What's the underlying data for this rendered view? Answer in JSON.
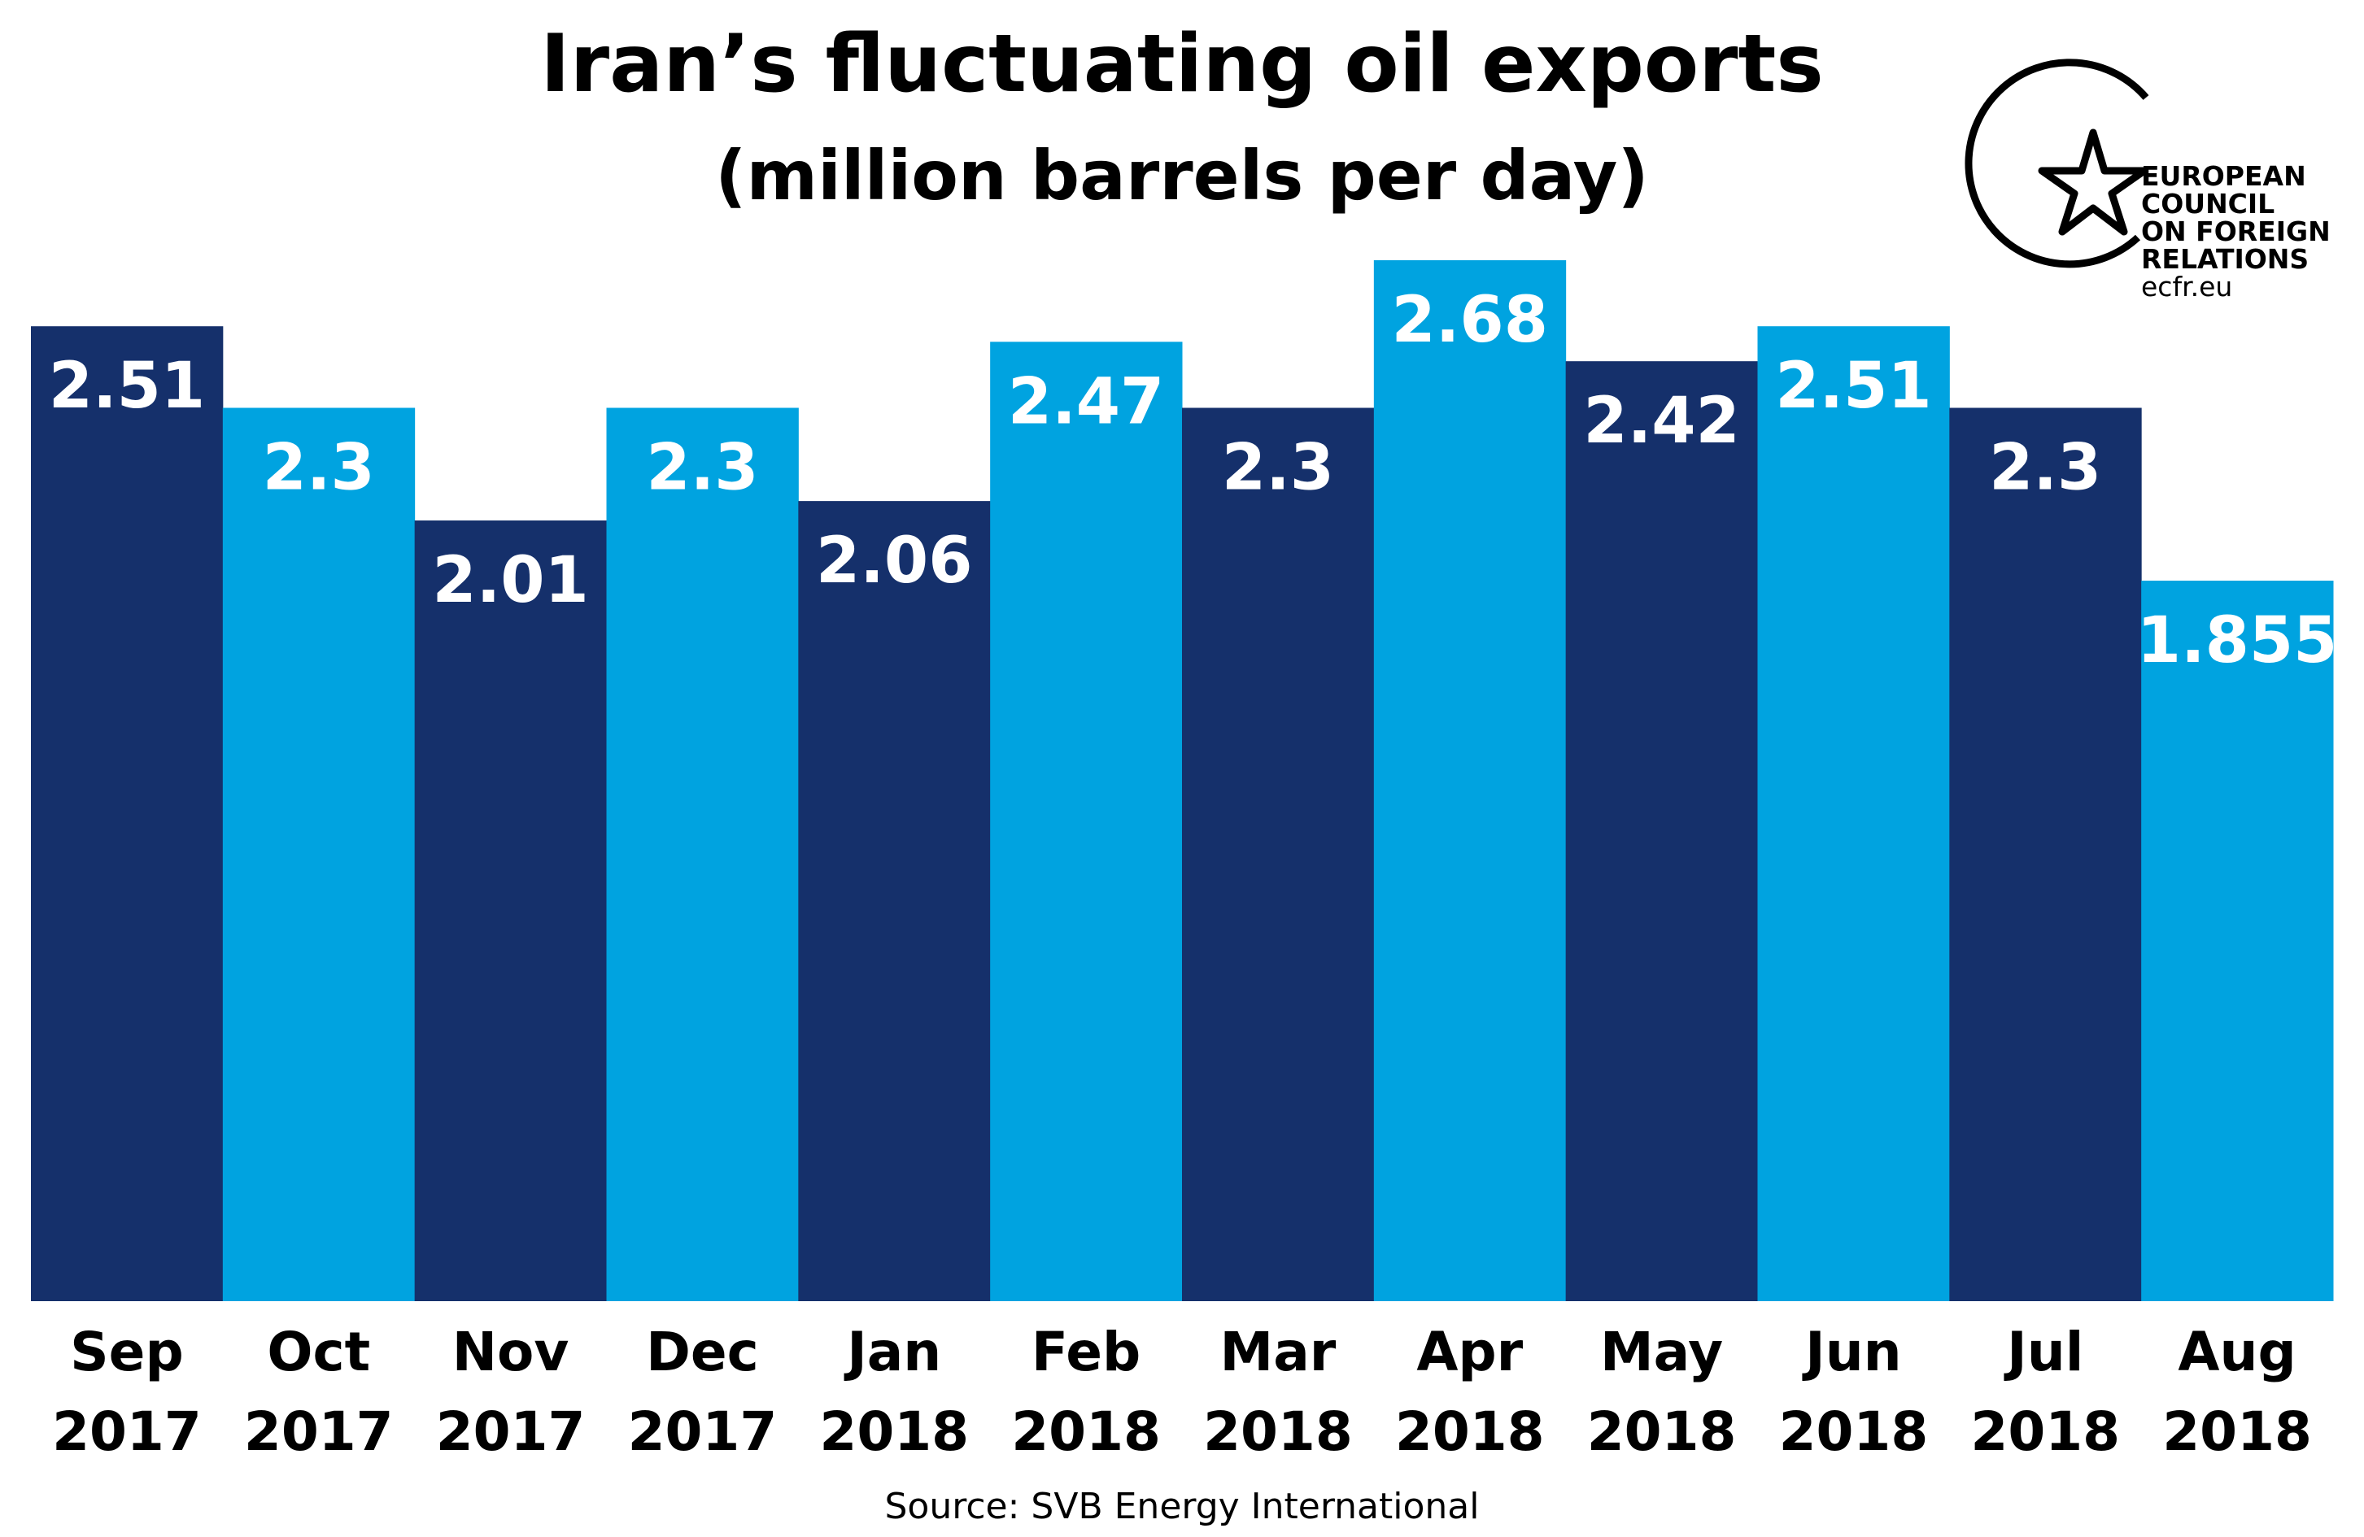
{
  "chart_data": {
    "type": "bar",
    "title": "Iran’s fluctuating oil exports",
    "subtitle": "(million barrels per day)",
    "categories": [
      [
        "Sep",
        "2017"
      ],
      [
        "Oct",
        "2017"
      ],
      [
        "Nov",
        "2017"
      ],
      [
        "Dec",
        "2017"
      ],
      [
        "Jan",
        "2018"
      ],
      [
        "Feb",
        "2018"
      ],
      [
        "Mar",
        "2018"
      ],
      [
        "Apr",
        "2018"
      ],
      [
        "May",
        "2018"
      ],
      [
        "Jun",
        "2018"
      ],
      [
        "Jul",
        "2018"
      ],
      [
        "Aug",
        "2018"
      ]
    ],
    "values": [
      2.51,
      2.3,
      2.01,
      2.3,
      2.06,
      2.47,
      2.3,
      2.68,
      2.42,
      2.51,
      2.3,
      1.855
    ],
    "value_labels": [
      "2.51",
      "2.3",
      "2.01",
      "2.3",
      "2.06",
      "2.47",
      "2.3",
      "2.68",
      "2.42",
      "2.51",
      "2.3",
      "1.855"
    ],
    "colors": [
      "#15306b",
      "#00a3e0",
      "#15306b",
      "#00a3e0",
      "#15306b",
      "#00a3e0",
      "#15306b",
      "#00a3e0",
      "#15306b",
      "#00a3e0",
      "#15306b",
      "#00a3e0"
    ],
    "ylim": [
      0,
      2.68
    ],
    "grid": false,
    "xlabel": "",
    "ylabel": ""
  },
  "source": "Source: SVB Energy International",
  "logo": {
    "lines": [
      "EUROPEAN",
      "COUNCIL",
      "ON FOREIGN",
      "RELATIONS"
    ],
    "url": "ecfr.eu",
    "icon": "star-in-circle-icon"
  }
}
